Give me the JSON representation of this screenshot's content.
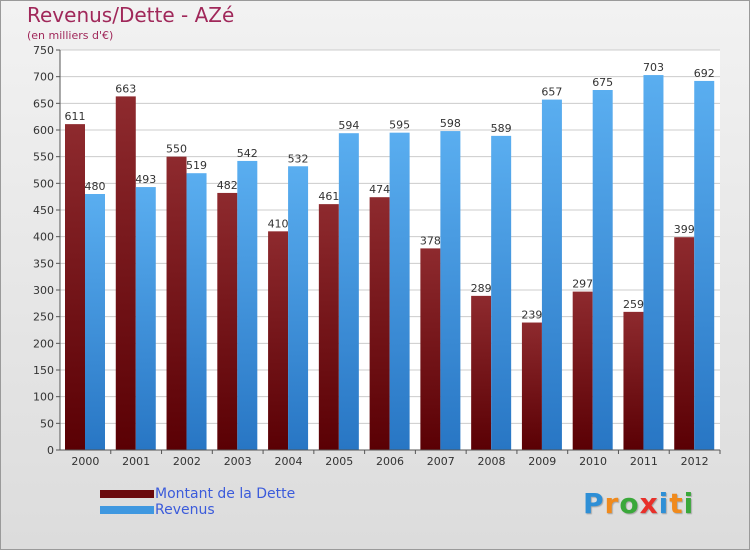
{
  "header": {
    "title": "Revenus/Dette - AZé",
    "subtitle": "(en milliers d'€)"
  },
  "colors": {
    "debt": "#7a1416",
    "revenue": "#3f98e0",
    "title": "#a0285a",
    "legend_text": "#3b5bdb"
  },
  "logo": {
    "text": "Proxiti",
    "letters": [
      "P",
      "r",
      "o",
      "x",
      "i",
      "t",
      "i"
    ],
    "letter_colors": [
      "#2e8fd6",
      "#f08a1c",
      "#3aa83a",
      "#e8302a",
      "#2e8fd6",
      "#f08a1c",
      "#3aa83a"
    ]
  },
  "chart_data": {
    "type": "bar",
    "title": "Revenus/Dette - AZé",
    "subtitle": "(en milliers d'€)",
    "xlabel": "",
    "ylabel": "",
    "ylim": [
      0,
      750
    ],
    "ytick_step": 50,
    "grid": true,
    "legend_position": "bottom-left",
    "categories": [
      "2000",
      "2001",
      "2002",
      "2003",
      "2004",
      "2005",
      "2006",
      "2007",
      "2008",
      "2009",
      "2010",
      "2011",
      "2012"
    ],
    "series": [
      {
        "name": "Montant de la Dette",
        "color": "#7a1416",
        "values": [
          611,
          663,
          550,
          482,
          410,
          461,
          474,
          378,
          289,
          239,
          297,
          259,
          399
        ]
      },
      {
        "name": "Revenus",
        "color": "#3f98e0",
        "values": [
          480,
          493,
          519,
          542,
          532,
          594,
          595,
          598,
          589,
          657,
          675,
          703,
          692
        ]
      }
    ]
  }
}
